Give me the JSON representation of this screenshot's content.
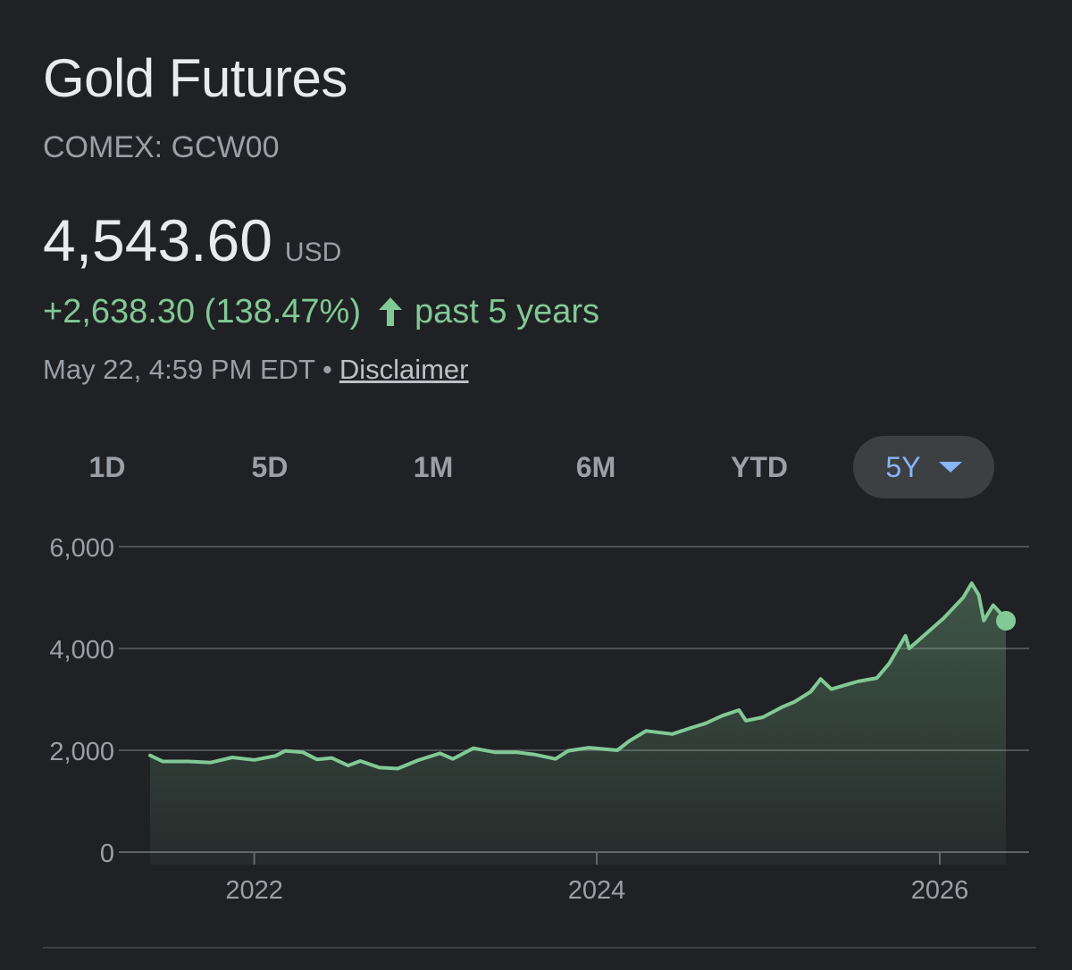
{
  "header": {
    "title": "Gold Futures",
    "ticker": "COMEX: GCW00",
    "price": "4,543.60",
    "currency": "USD",
    "change": "+2,638.30 (138.47%)",
    "change_icon": "arrow-up-icon",
    "period": "past 5 years",
    "timestamp": "May 22, 4:59 PM EDT",
    "separator": "•",
    "disclaimer": "Disclaimer"
  },
  "range_tabs": [
    {
      "label": "1D",
      "active": false
    },
    {
      "label": "5D",
      "active": false
    },
    {
      "label": "1M",
      "active": false
    },
    {
      "label": "6M",
      "active": false
    },
    {
      "label": "YTD",
      "active": false
    },
    {
      "label": "5Y",
      "active": true
    }
  ],
  "colors": {
    "background": "#202124",
    "line": "#81c995",
    "positive": "#81c995",
    "active_tab": "#8ab4f8",
    "grid": "#5f6368",
    "muted_text": "#9aa0a6"
  },
  "chart_data": {
    "type": "area",
    "x_axis": "date",
    "y_ticks": [
      "6,000",
      "4,000",
      "2,000",
      "0"
    ],
    "y_tick_values": [
      6000,
      4000,
      2000,
      0
    ],
    "x_ticks": [
      {
        "label": "2022",
        "value": "2022-01-01"
      },
      {
        "label": "2024",
        "value": "2024-01-01"
      },
      {
        "label": "2026",
        "value": "2026-01-01"
      }
    ],
    "ylim": [
      0,
      6000
    ],
    "xlim": [
      "2021-05-24",
      "2026-06-10"
    ],
    "grid": true,
    "series": [
      {
        "points": [
          [
            "2021-05-24",
            1900
          ],
          [
            "2021-06-20",
            1780
          ],
          [
            "2021-08-15",
            1780
          ],
          [
            "2021-09-30",
            1760
          ],
          [
            "2021-11-15",
            1860
          ],
          [
            "2022-01-01",
            1810
          ],
          [
            "2022-02-15",
            1890
          ],
          [
            "2022-03-08",
            1990
          ],
          [
            "2022-04-15",
            1960
          ],
          [
            "2022-05-15",
            1820
          ],
          [
            "2022-06-15",
            1850
          ],
          [
            "2022-07-20",
            1700
          ],
          [
            "2022-08-15",
            1790
          ],
          [
            "2022-09-25",
            1660
          ],
          [
            "2022-11-03",
            1640
          ],
          [
            "2022-12-15",
            1800
          ],
          [
            "2023-02-01",
            1940
          ],
          [
            "2023-02-28",
            1830
          ],
          [
            "2023-04-13",
            2040
          ],
          [
            "2023-05-30",
            1960
          ],
          [
            "2023-07-15",
            1960
          ],
          [
            "2023-08-20",
            1920
          ],
          [
            "2023-10-05",
            1830
          ],
          [
            "2023-11-01",
            1990
          ],
          [
            "2023-12-15",
            2050
          ],
          [
            "2024-02-14",
            2000
          ],
          [
            "2024-03-10",
            2180
          ],
          [
            "2024-04-15",
            2380
          ],
          [
            "2024-06-10",
            2320
          ],
          [
            "2024-07-20",
            2440
          ],
          [
            "2024-08-20",
            2530
          ],
          [
            "2024-09-25",
            2680
          ],
          [
            "2024-10-30",
            2790
          ],
          [
            "2024-11-14",
            2580
          ],
          [
            "2024-12-20",
            2650
          ],
          [
            "2025-01-30",
            2850
          ],
          [
            "2025-02-25",
            2950
          ],
          [
            "2025-04-01",
            3150
          ],
          [
            "2025-04-22",
            3400
          ],
          [
            "2025-05-15",
            3200
          ],
          [
            "2025-07-10",
            3350
          ],
          [
            "2025-08-20",
            3420
          ],
          [
            "2025-09-15",
            3700
          ],
          [
            "2025-10-20",
            4250
          ],
          [
            "2025-10-28",
            4000
          ],
          [
            "2025-12-10",
            4350
          ],
          [
            "2026-01-10",
            4600
          ],
          [
            "2026-02-20",
            5000
          ],
          [
            "2026-03-10",
            5280
          ],
          [
            "2026-03-25",
            5050
          ],
          [
            "2026-04-05",
            4550
          ],
          [
            "2026-04-25",
            4850
          ],
          [
            "2026-05-10",
            4700
          ],
          [
            "2026-05-22",
            4543.6
          ]
        ]
      }
    ]
  }
}
